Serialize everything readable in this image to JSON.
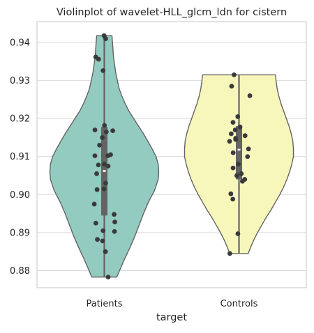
{
  "chart_data": {
    "type": "violin",
    "title": "Violinplot of wavelet-HLL_glcm_ldn for cistern",
    "xlabel": "target",
    "ylabel": "",
    "categories": [
      "Patients",
      "Controls"
    ],
    "ylim": [
      0.8755,
      0.9455
    ],
    "yticks": [
      0.88,
      0.89,
      0.9,
      0.91,
      0.92,
      0.93,
      0.94
    ],
    "ytick_labels": [
      "0.88",
      "0.89",
      "0.90",
      "0.91",
      "0.92",
      "0.93",
      "0.94"
    ],
    "grid": true,
    "colors": {
      "Patients": "#93cbc0",
      "Controls": "#f8f7bb",
      "outline": "#636363",
      "points": "#3a3a3a",
      "grid": "#d9d9d9",
      "axes": "#cfcfcf"
    },
    "series": [
      {
        "category": "Patients",
        "range": [
          0.8783,
          0.9418
        ],
        "box": {
          "q1": 0.8945,
          "median": 0.9062,
          "q3": 0.9178
        },
        "density_profile": [
          [
            0.8783,
            0.23
          ],
          [
            0.88,
            0.28
          ],
          [
            0.883,
            0.37
          ],
          [
            0.886,
            0.47
          ],
          [
            0.889,
            0.56
          ],
          [
            0.892,
            0.64
          ],
          [
            0.895,
            0.72
          ],
          [
            0.898,
            0.81
          ],
          [
            0.901,
            0.92
          ],
          [
            0.904,
            0.99
          ],
          [
            0.906,
            1.0
          ],
          [
            0.908,
            0.99
          ],
          [
            0.91,
            0.95
          ],
          [
            0.912,
            0.88
          ],
          [
            0.914,
            0.8
          ],
          [
            0.916,
            0.72
          ],
          [
            0.918,
            0.63
          ],
          [
            0.92,
            0.54
          ],
          [
            0.922,
            0.45
          ],
          [
            0.924,
            0.38
          ],
          [
            0.926,
            0.32
          ],
          [
            0.928,
            0.27
          ],
          [
            0.93,
            0.24
          ],
          [
            0.932,
            0.21
          ],
          [
            0.934,
            0.19
          ],
          [
            0.936,
            0.17
          ],
          [
            0.938,
            0.16
          ],
          [
            0.94,
            0.15
          ],
          [
            0.9418,
            0.14
          ]
        ],
        "points": [
          0.9418,
          0.941,
          0.9362,
          0.9356,
          0.9326,
          0.9182,
          0.917,
          0.9168,
          0.9165,
          0.915,
          0.913,
          0.9105,
          0.9102,
          0.9102,
          0.908,
          0.9078,
          0.9075,
          0.9055,
          0.903,
          0.9015,
          0.9013,
          0.8975,
          0.8948,
          0.8928,
          0.8925,
          0.8905,
          0.8903,
          0.8882,
          0.8878,
          0.885,
          0.8783
        ]
      },
      {
        "category": "Controls",
        "range": [
          0.8845,
          0.9315
        ],
        "box": {
          "q1": 0.904,
          "median": 0.9118,
          "q3": 0.918
        },
        "density_profile": [
          [
            0.8845,
            0.17
          ],
          [
            0.886,
            0.21
          ],
          [
            0.888,
            0.27
          ],
          [
            0.89,
            0.34
          ],
          [
            0.892,
            0.42
          ],
          [
            0.894,
            0.5
          ],
          [
            0.896,
            0.59
          ],
          [
            0.898,
            0.67
          ],
          [
            0.9,
            0.75
          ],
          [
            0.902,
            0.82
          ],
          [
            0.904,
            0.88
          ],
          [
            0.906,
            0.93
          ],
          [
            0.908,
            0.97
          ],
          [
            0.91,
            1.0
          ],
          [
            0.912,
            1.0
          ],
          [
            0.914,
            0.99
          ],
          [
            0.916,
            0.96
          ],
          [
            0.918,
            0.92
          ],
          [
            0.92,
            0.87
          ],
          [
            0.922,
            0.82
          ],
          [
            0.924,
            0.77
          ],
          [
            0.926,
            0.73
          ],
          [
            0.928,
            0.7
          ],
          [
            0.93,
            0.68
          ],
          [
            0.9315,
            0.67
          ]
        ],
        "points": [
          0.9315,
          0.9285,
          0.926,
          0.9205,
          0.919,
          0.9178,
          0.917,
          0.916,
          0.9155,
          0.9148,
          0.9145,
          0.914,
          0.912,
          0.911,
          0.91,
          0.908,
          0.907,
          0.9055,
          0.905,
          0.904,
          0.9035,
          0.9002,
          0.8988,
          0.8897,
          0.8845
        ]
      }
    ]
  }
}
